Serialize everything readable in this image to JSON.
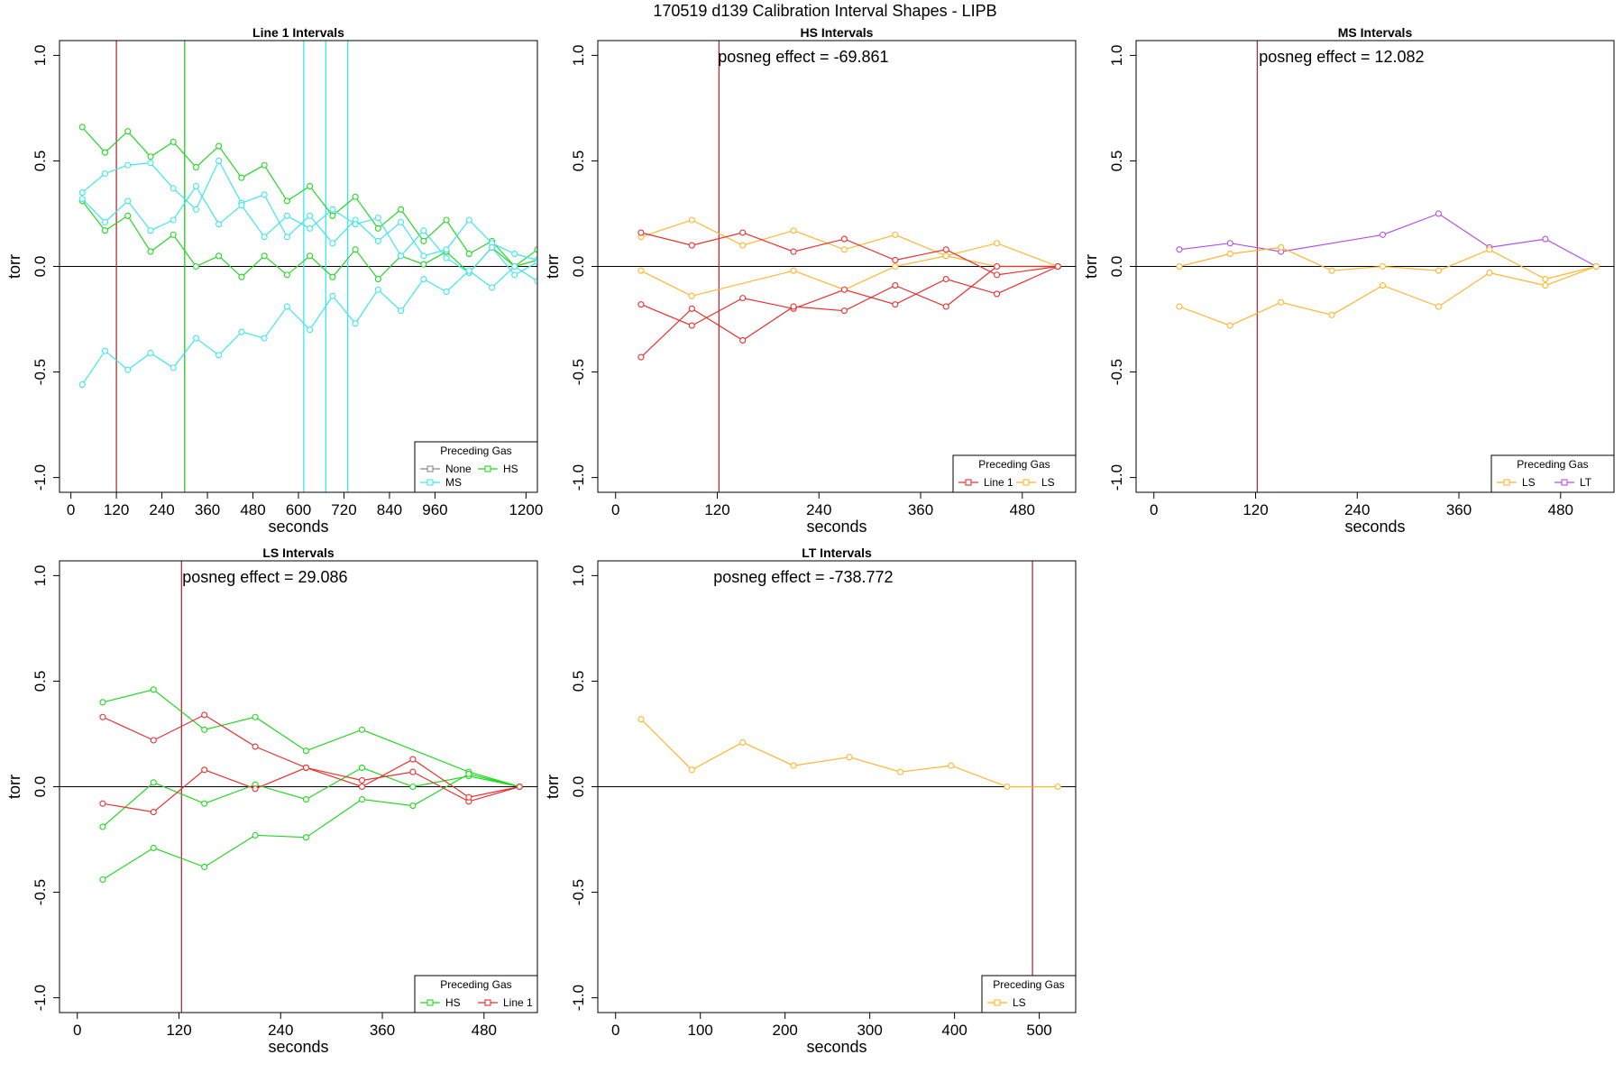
{
  "title": "170519   d139   Calibration Interval Shapes - LIPB",
  "chart_data": [
    {
      "type": "line",
      "title": "Line 1 Intervals",
      "xlabel": "seconds",
      "ylabel": "torr",
      "xlim": [
        -30,
        1230
      ],
      "ylim": [
        -1.07,
        1.07
      ],
      "xticks": [
        0,
        120,
        240,
        360,
        480,
        600,
        720,
        840,
        960,
        1200
      ],
      "xtick_labels": [
        "0",
        "120",
        "240",
        "360",
        "480",
        "600",
        "720",
        "840",
        "960",
        "1200"
      ],
      "yticks": [
        -1.0,
        -0.5,
        0.0,
        0.5,
        1.0
      ],
      "ytick_labels": [
        "-1.0",
        "-0.5",
        "0.0",
        "0.5",
        "1.0"
      ],
      "hline": 0,
      "annotation": "",
      "vlines": [
        {
          "x": 120,
          "color": "#b0303a"
        },
        {
          "x": 300,
          "color": "#22c822"
        },
        {
          "x": 614,
          "color": "#3ee6ee"
        },
        {
          "x": 672,
          "color": "#3ee6ee"
        },
        {
          "x": 730,
          "color": "#3ee6ee"
        }
      ],
      "legend": {
        "title": "Preceding Gas",
        "entries": [
          {
            "label": "None",
            "color": "#888888"
          },
          {
            "label": "HS",
            "color": "#22d822"
          },
          {
            "label": "MS",
            "color": "#3ee6ee"
          }
        ]
      },
      "series": [
        {
          "color": "#22d822",
          "x": [
            30,
            90,
            150,
            210,
            270,
            330,
            390,
            450,
            510,
            570,
            630,
            690,
            750,
            810,
            870,
            930,
            990,
            1050,
            1110,
            1170,
            1230
          ],
          "y": [
            0.66,
            0.54,
            0.64,
            0.52,
            0.59,
            0.47,
            0.57,
            0.42,
            0.48,
            0.31,
            0.38,
            0.24,
            0.33,
            0.18,
            0.27,
            0.12,
            0.22,
            0.06,
            0.12,
            0.0,
            0.08
          ]
        },
        {
          "color": "#22d822",
          "x": [
            30,
            90,
            150,
            210,
            270,
            330,
            390,
            450,
            510,
            570,
            630,
            690,
            750,
            810,
            870,
            930,
            990,
            1050,
            1110,
            1170,
            1230
          ],
          "y": [
            0.31,
            0.17,
            0.24,
            0.07,
            0.15,
            0.0,
            0.05,
            -0.05,
            0.05,
            -0.04,
            0.05,
            -0.05,
            0.08,
            -0.06,
            0.05,
            0.01,
            0.07,
            -0.03,
            0.09,
            0.0,
            0.03
          ]
        },
        {
          "color": "#3ee6ee",
          "x": [
            30,
            90,
            150,
            210,
            270,
            330,
            390,
            450,
            510,
            570,
            630,
            690,
            750,
            810,
            870,
            930,
            990,
            1050,
            1110,
            1170,
            1230
          ],
          "y": [
            0.35,
            0.44,
            0.48,
            0.49,
            0.37,
            0.27,
            0.5,
            0.3,
            0.34,
            0.14,
            0.24,
            0.11,
            0.22,
            0.12,
            0.21,
            0.05,
            0.08,
            0.22,
            0.11,
            0.06,
            0.03
          ]
        },
        {
          "color": "#3ee6ee",
          "x": [
            30,
            90,
            150,
            210,
            270,
            330,
            390,
            450,
            510,
            570,
            630,
            690,
            750,
            810,
            870,
            930,
            990,
            1050,
            1110,
            1170,
            1230
          ],
          "y": [
            0.32,
            0.21,
            0.31,
            0.17,
            0.22,
            0.38,
            0.2,
            0.29,
            0.14,
            0.24,
            0.18,
            0.27,
            0.2,
            0.23,
            0.05,
            0.17,
            0.04,
            -0.03,
            0.09,
            -0.04,
            0.02
          ]
        },
        {
          "color": "#3ee6ee",
          "x": [
            30,
            90,
            150,
            210,
            270,
            330,
            390,
            450,
            510,
            570,
            630,
            690,
            750,
            810,
            870,
            930,
            990,
            1050,
            1110,
            1170,
            1230
          ],
          "y": [
            -0.56,
            -0.4,
            -0.49,
            -0.41,
            -0.48,
            -0.34,
            -0.42,
            -0.31,
            -0.34,
            -0.19,
            -0.3,
            -0.14,
            -0.27,
            -0.11,
            -0.21,
            -0.06,
            -0.12,
            -0.02,
            -0.1,
            0.0,
            -0.07
          ]
        }
      ]
    },
    {
      "type": "line",
      "title": "HS Intervals",
      "xlabel": "seconds",
      "ylabel": "torr",
      "xlim": [
        -21,
        543
      ],
      "ylim": [
        -1.07,
        1.07
      ],
      "xticks": [
        0,
        120,
        240,
        360,
        480
      ],
      "xtick_labels": [
        "0",
        "120",
        "240",
        "360",
        "480"
      ],
      "yticks": [
        -1.0,
        -0.5,
        0.0,
        0.5,
        1.0
      ],
      "ytick_labels": [
        "-1.0",
        "-0.5",
        "0.0",
        "0.5",
        "1.0"
      ],
      "hline": 0,
      "annotation": "posneg effect = -69.861",
      "vlines": [
        {
          "x": 122,
          "color": "#b0303a"
        }
      ],
      "legend": {
        "title": "Preceding Gas",
        "entries": [
          {
            "label": "Line 1",
            "color": "#e83030"
          },
          {
            "label": "LS",
            "color": "#ffb52e"
          }
        ]
      },
      "series": [
        {
          "color": "#ffb52e",
          "x": [
            30,
            90,
            150,
            210,
            270,
            330,
            390,
            450,
            522
          ],
          "y": [
            0.14,
            0.22,
            0.1,
            0.17,
            0.08,
            0.15,
            0.05,
            0.11,
            0.0
          ]
        },
        {
          "color": "#ffb52e",
          "x": [
            30,
            90,
            210,
            270,
            330,
            390,
            450,
            522
          ],
          "y": [
            -0.02,
            -0.14,
            -0.02,
            -0.11,
            0.0,
            0.05,
            0.0,
            0.0
          ]
        },
        {
          "color": "#e83030",
          "x": [
            30,
            90,
            150,
            210,
            270,
            330,
            390,
            450,
            522
          ],
          "y": [
            0.16,
            0.1,
            0.16,
            0.07,
            0.13,
            0.03,
            0.08,
            -0.04,
            0.0
          ]
        },
        {
          "color": "#e83030",
          "x": [
            30,
            90,
            150,
            210,
            270,
            330,
            390,
            450,
            522
          ],
          "y": [
            -0.18,
            -0.28,
            -0.15,
            -0.2,
            -0.11,
            -0.18,
            -0.06,
            -0.13,
            0.0
          ]
        },
        {
          "color": "#e83030",
          "x": [
            30,
            90,
            150,
            210,
            270,
            330,
            390,
            450,
            522
          ],
          "y": [
            -0.43,
            -0.2,
            -0.35,
            -0.19,
            -0.21,
            -0.09,
            -0.19,
            0.0,
            0.0
          ]
        }
      ]
    },
    {
      "type": "line",
      "title": "MS Intervals",
      "xlabel": "seconds",
      "ylabel": "torr",
      "xlim": [
        -21,
        543
      ],
      "ylim": [
        -1.07,
        1.07
      ],
      "xticks": [
        0,
        120,
        240,
        360,
        480
      ],
      "xtick_labels": [
        "0",
        "120",
        "240",
        "360",
        "480"
      ],
      "yticks": [
        -1.0,
        -0.5,
        0.0,
        0.5,
        1.0
      ],
      "ytick_labels": [
        "-1.0",
        "-0.5",
        "0.0",
        "0.5",
        "1.0"
      ],
      "hline": 0,
      "annotation": "posneg effect = 12.082",
      "vlines": [
        {
          "x": 122,
          "color": "#b0303a"
        }
      ],
      "legend": {
        "title": "Preceding Gas",
        "entries": [
          {
            "label": "LS",
            "color": "#ffb52e"
          },
          {
            "label": "LT",
            "color": "#b050ea"
          }
        ]
      },
      "series": [
        {
          "color": "#b050ea",
          "x": [
            30,
            90,
            150,
            270,
            336,
            396,
            462,
            522
          ],
          "y": [
            0.08,
            0.11,
            0.07,
            0.15,
            0.25,
            0.09,
            0.13,
            0.0
          ]
        },
        {
          "color": "#ffb52e",
          "x": [
            30,
            90,
            150,
            210,
            270,
            336,
            396,
            462,
            522
          ],
          "y": [
            0.0,
            0.06,
            0.09,
            -0.02,
            0.0,
            -0.02,
            0.08,
            -0.06,
            0.0
          ]
        },
        {
          "color": "#ffb52e",
          "x": [
            30,
            90,
            150,
            210,
            270,
            336,
            396,
            462,
            522
          ],
          "y": [
            -0.19,
            -0.28,
            -0.17,
            -0.23,
            -0.09,
            -0.19,
            -0.03,
            -0.09,
            0.0
          ]
        }
      ]
    },
    {
      "type": "line",
      "title": "LS Intervals",
      "xlabel": "seconds",
      "ylabel": "torr",
      "xlim": [
        -21,
        543
      ],
      "ylim": [
        -1.07,
        1.07
      ],
      "xticks": [
        0,
        120,
        240,
        360,
        480
      ],
      "xtick_labels": [
        "0",
        "120",
        "240",
        "360",
        "480"
      ],
      "yticks": [
        -1.0,
        -0.5,
        0.0,
        0.5,
        1.0
      ],
      "ytick_labels": [
        "-1.0",
        "-0.5",
        "0.0",
        "0.5",
        "1.0"
      ],
      "hline": 0,
      "annotation": "posneg effect = 29.086",
      "vlines": [
        {
          "x": 123,
          "color": "#b0303a"
        }
      ],
      "legend": {
        "title": "Preceding Gas",
        "entries": [
          {
            "label": "HS",
            "color": "#22d822"
          },
          {
            "label": "Line 1",
            "color": "#e83030"
          }
        ]
      },
      "series": [
        {
          "color": "#22d822",
          "x": [
            30,
            90,
            150,
            210,
            270,
            336,
            462,
            522
          ],
          "y": [
            0.4,
            0.46,
            0.27,
            0.33,
            0.17,
            0.27,
            0.07,
            0.0
          ]
        },
        {
          "color": "#22d822",
          "x": [
            30,
            90,
            150,
            210,
            270,
            336,
            396,
            462,
            522
          ],
          "y": [
            -0.19,
            0.02,
            -0.08,
            0.01,
            -0.06,
            0.09,
            0.0,
            0.05,
            0.0
          ]
        },
        {
          "color": "#22d822",
          "x": [
            30,
            90,
            150,
            210,
            270,
            336,
            396,
            462,
            522
          ],
          "y": [
            -0.44,
            -0.29,
            -0.38,
            -0.23,
            -0.24,
            -0.06,
            -0.09,
            0.06,
            0.0
          ]
        },
        {
          "color": "#e83030",
          "x": [
            30,
            90,
            150,
            210,
            270,
            336,
            396,
            462,
            522
          ],
          "y": [
            0.33,
            0.22,
            0.34,
            0.19,
            0.09,
            0.03,
            0.07,
            -0.07,
            0.0
          ]
        },
        {
          "color": "#e83030",
          "x": [
            30,
            90,
            150,
            210,
            270,
            336,
            396,
            462,
            522
          ],
          "y": [
            -0.08,
            -0.12,
            0.08,
            -0.01,
            0.09,
            0.0,
            0.13,
            -0.05,
            0.0
          ]
        }
      ]
    },
    {
      "type": "line",
      "title": "LT Intervals",
      "xlabel": "seconds",
      "ylabel": "torr",
      "xlim": [
        -21,
        543
      ],
      "ylim": [
        -1.07,
        1.07
      ],
      "xticks": [
        0,
        100,
        200,
        300,
        400,
        500
      ],
      "xtick_labels": [
        "0",
        "100",
        "200",
        "300",
        "400",
        "500"
      ],
      "yticks": [
        -1.0,
        -0.5,
        0.0,
        0.5,
        1.0
      ],
      "ytick_labels": [
        "-1.0",
        "-0.5",
        "0.0",
        "0.5",
        "1.0"
      ],
      "hline": 0,
      "annotation": "posneg effect = -738.772",
      "vlines": [
        {
          "x": 492,
          "color": "#b0303a"
        }
      ],
      "legend": {
        "title": "Preceding Gas",
        "entries": [
          {
            "label": "LS",
            "color": "#ffb52e"
          }
        ]
      },
      "series": [
        {
          "color": "#ffb52e",
          "x": [
            30,
            90,
            150,
            210,
            276,
            336,
            396,
            462,
            522
          ],
          "y": [
            0.32,
            0.08,
            0.21,
            0.1,
            0.14,
            0.07,
            0.1,
            0.0,
            0.0
          ]
        }
      ]
    }
  ]
}
